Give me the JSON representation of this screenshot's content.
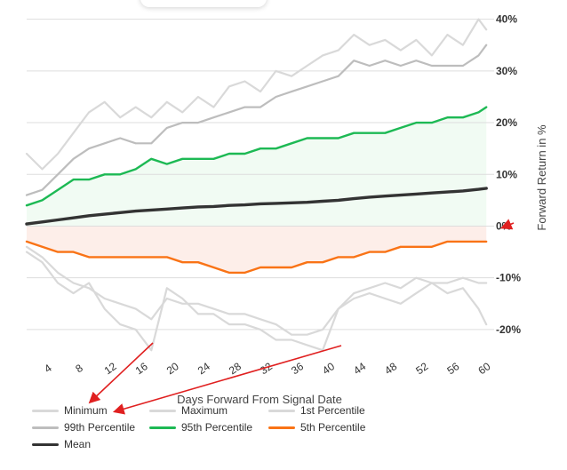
{
  "chart_data": {
    "type": "line",
    "title": "",
    "xlabel": "Days Forward From Signal Date",
    "ylabel": "Forward Return in %",
    "xlim": [
      1,
      61
    ],
    "ylim": [
      -25,
      42
    ],
    "x_ticks": [
      4,
      8,
      12,
      16,
      20,
      24,
      28,
      32,
      36,
      40,
      44,
      48,
      52,
      56,
      60
    ],
    "y_ticks": [
      40,
      30,
      20,
      10,
      0,
      -10,
      -20
    ],
    "y_tick_labels": [
      "40%",
      "30%",
      "20%",
      "10%",
      "0%",
      "-10%",
      "-20%"
    ],
    "grid": true,
    "legend_position": "bottom-left",
    "x": [
      1,
      3,
      5,
      7,
      9,
      11,
      13,
      15,
      17,
      19,
      21,
      23,
      25,
      27,
      29,
      31,
      33,
      35,
      37,
      39,
      41,
      43,
      45,
      47,
      49,
      51,
      53,
      55,
      57,
      59,
      60
    ],
    "series": [
      {
        "name": "Minimum",
        "color": "#d9d9d9",
        "values": [
          -5,
          -7,
          -11,
          -13,
          -11,
          -16,
          -19,
          -20,
          -24,
          -12,
          -14,
          -17,
          -17,
          -19,
          -19,
          -20,
          -22,
          -22,
          -23,
          -24,
          -16,
          -14,
          -13,
          -14,
          -15,
          -13,
          -11,
          -13,
          -12,
          -16,
          -19
        ]
      },
      {
        "name": "Maximum",
        "color": "#d9d9d9",
        "values": [
          14,
          11,
          14,
          18,
          22,
          24,
          21,
          23,
          21,
          24,
          22,
          25,
          23,
          27,
          28,
          26,
          30,
          29,
          31,
          33,
          34,
          37,
          35,
          36,
          34,
          36,
          33,
          37,
          35,
          40,
          38
        ]
      },
      {
        "name": "1st Percentile",
        "color": "#d9d9d9",
        "values": [
          -4,
          -6,
          -9,
          -11,
          -12,
          -14,
          -15,
          -16,
          -18,
          -14,
          -15,
          -15,
          -16,
          -17,
          -17,
          -18,
          -19,
          -21,
          -21,
          -20,
          -16,
          -13,
          -12,
          -11,
          -12,
          -10,
          -11,
          -11,
          -10,
          -11,
          -11
        ]
      },
      {
        "name": "99th Percentile",
        "color": "#bdbdbd",
        "values": [
          6,
          7,
          10,
          13,
          15,
          16,
          17,
          16,
          16,
          19,
          20,
          20,
          21,
          22,
          23,
          23,
          25,
          26,
          27,
          28,
          29,
          32,
          31,
          32,
          31,
          32,
          31,
          31,
          31,
          33,
          35
        ]
      },
      {
        "name": "95th Percentile",
        "color": "#1db954",
        "values": [
          4,
          5,
          7,
          9,
          9,
          10,
          10,
          11,
          13,
          12,
          13,
          13,
          13,
          14,
          14,
          15,
          15,
          16,
          17,
          17,
          17,
          18,
          18,
          18,
          19,
          20,
          20,
          21,
          21,
          22,
          23
        ]
      },
      {
        "name": "5th Percentile",
        "color": "#f97316",
        "values": [
          -3,
          -4,
          -5,
          -5,
          -6,
          -6,
          -6,
          -6,
          -6,
          -6,
          -7,
          -7,
          -8,
          -9,
          -9,
          -8,
          -8,
          -8,
          -7,
          -7,
          -6,
          -6,
          -5,
          -5,
          -4,
          -4,
          -4,
          -3,
          -3,
          -3,
          -3
        ]
      },
      {
        "name": "Mean",
        "color": "#333333",
        "values": [
          0.4,
          0.8,
          1.2,
          1.6,
          2.0,
          2.3,
          2.6,
          2.9,
          3.1,
          3.3,
          3.5,
          3.7,
          3.8,
          4.0,
          4.1,
          4.3,
          4.4,
          4.5,
          4.6,
          4.8,
          5.0,
          5.3,
          5.6,
          5.8,
          6.0,
          6.2,
          6.4,
          6.6,
          6.8,
          7.1,
          7.3
        ]
      }
    ]
  },
  "colors": {
    "grid": "#dddddd",
    "positive_fill": "#f1fbf3",
    "negative_fill": "#fdeee9",
    "arrow": "#e02020"
  },
  "legend": [
    {
      "label": "Minimum",
      "color": "#d9d9d9"
    },
    {
      "label": "Maximum",
      "color": "#d9d9d9"
    },
    {
      "label": "1st Percentile",
      "color": "#d9d9d9"
    },
    {
      "label": "99th Percentile",
      "color": "#bdbdbd"
    },
    {
      "label": "95th Percentile",
      "color": "#1db954"
    },
    {
      "label": "5th Percentile",
      "color": "#f97316"
    },
    {
      "label": "Mean",
      "color": "#333333"
    }
  ]
}
